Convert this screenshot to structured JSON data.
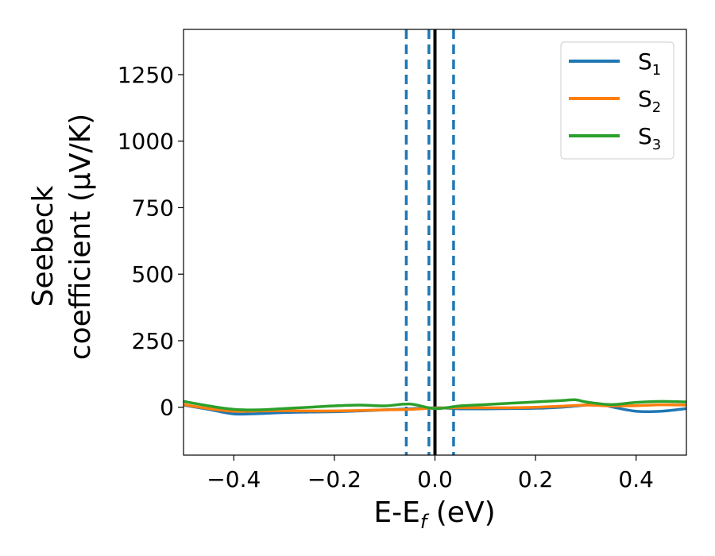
{
  "chart_data": {
    "type": "line",
    "title": "",
    "xlabel": "E-E_f (eV)",
    "ylabel_line1": "Seebeck",
    "ylabel_line2": "coefficient  (μV/K)",
    "xlim": [
      -0.5,
      0.5
    ],
    "ylim": [
      -180,
      1420
    ],
    "x_ticks": [
      -0.4,
      -0.2,
      0.0,
      0.2,
      0.4
    ],
    "x_tick_labels": [
      "−0.4",
      "−0.2",
      "0.0",
      "0.2",
      "0.4"
    ],
    "y_ticks": [
      0,
      250,
      500,
      750,
      1000,
      1250
    ],
    "y_tick_labels": [
      "0",
      "250",
      "500",
      "750",
      "1000",
      "1250"
    ],
    "grid": false,
    "legend_position": "top-right",
    "series": [
      {
        "name": "S",
        "subscript": "1",
        "color": "#1f77b4",
        "x": [
          -0.5,
          -0.45,
          -0.4,
          -0.35,
          -0.3,
          -0.25,
          -0.2,
          -0.15,
          -0.1,
          -0.05,
          0.0,
          0.05,
          0.1,
          0.15,
          0.2,
          0.25,
          0.3,
          0.33,
          0.35,
          0.4,
          0.45,
          0.5
        ],
        "values": [
          8,
          -8,
          -25,
          -24,
          -20,
          -18,
          -17,
          -14,
          -10,
          -6,
          -2,
          -6,
          -6,
          -5,
          -4,
          0,
          8,
          12,
          2,
          -15,
          -15,
          -5
        ]
      },
      {
        "name": "S",
        "subscript": "2",
        "color": "#ff7f0e",
        "x": [
          -0.5,
          -0.45,
          -0.4,
          -0.35,
          -0.3,
          -0.25,
          -0.2,
          -0.15,
          -0.1,
          -0.05,
          0.0,
          0.05,
          0.1,
          0.15,
          0.2,
          0.25,
          0.3,
          0.35,
          0.4,
          0.45,
          0.5
        ],
        "values": [
          10,
          -5,
          -15,
          -14,
          -13,
          -14,
          -14,
          -12,
          -10,
          -8,
          -3,
          -2,
          -2,
          -2,
          0,
          4,
          8,
          5,
          6,
          9,
          8
        ]
      },
      {
        "name": "S",
        "subscript": "3",
        "color": "#2ca02c",
        "x": [
          -0.5,
          -0.45,
          -0.4,
          -0.35,
          -0.3,
          -0.25,
          -0.2,
          -0.15,
          -0.1,
          -0.05,
          0.0,
          0.05,
          0.1,
          0.15,
          0.2,
          0.25,
          0.28,
          0.3,
          0.35,
          0.4,
          0.45,
          0.5
        ],
        "values": [
          22,
          5,
          -8,
          -10,
          -5,
          0,
          5,
          8,
          5,
          12,
          -5,
          5,
          10,
          15,
          20,
          25,
          28,
          20,
          10,
          18,
          22,
          20
        ]
      }
    ],
    "vertical_lines": [
      {
        "x": 0.0,
        "color": "#000000",
        "style": "solid"
      },
      {
        "x": -0.057,
        "color": "#1f77b4",
        "style": "dashed"
      },
      {
        "x": -0.012,
        "color": "#1f77b4",
        "style": "dashed"
      },
      {
        "x": 0.037,
        "color": "#1f77b4",
        "style": "dashed"
      }
    ]
  }
}
